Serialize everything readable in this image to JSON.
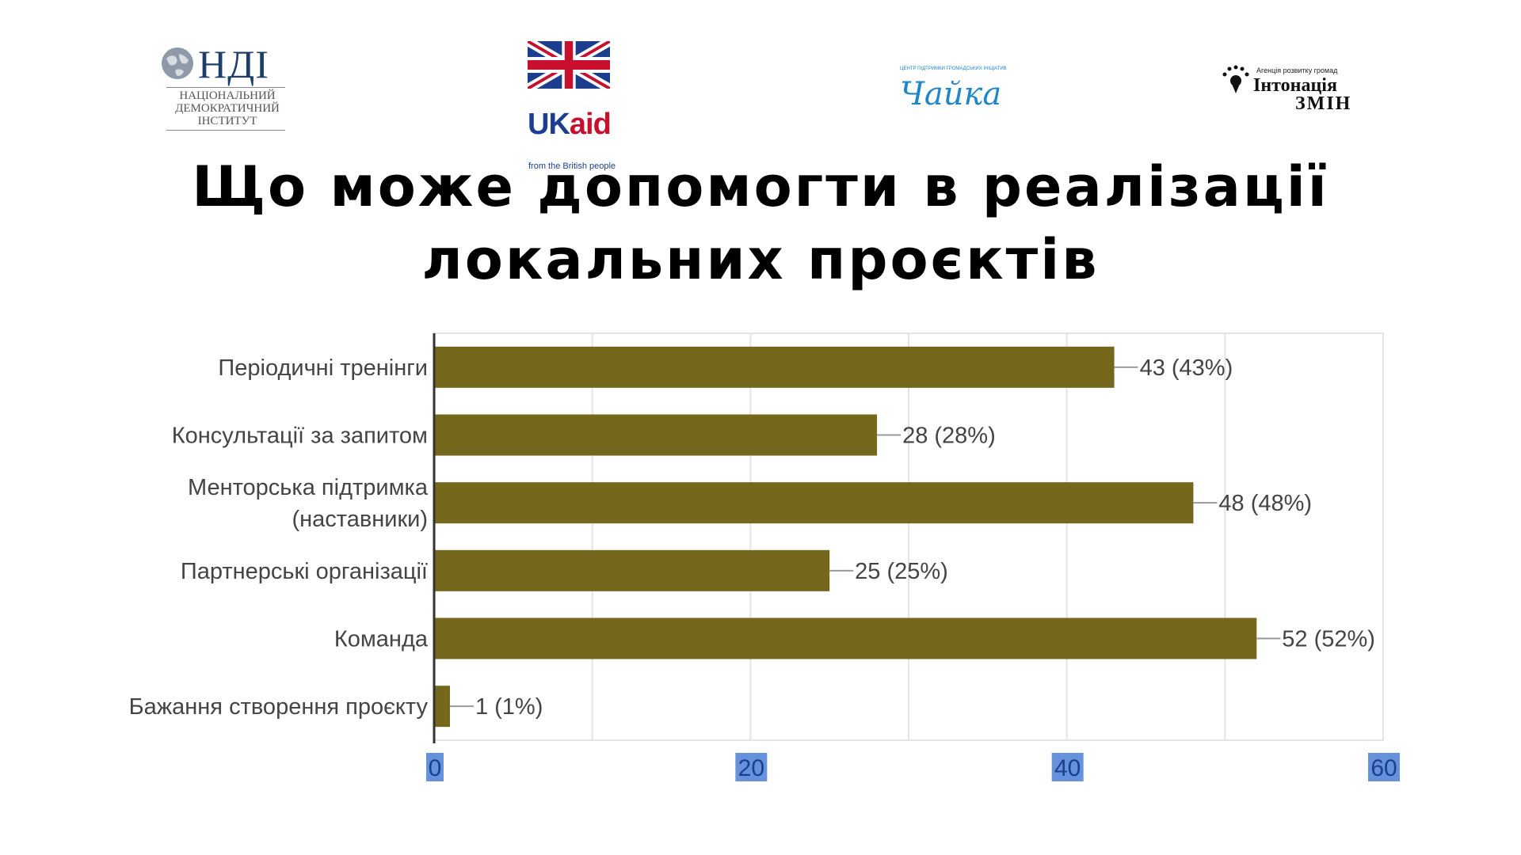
{
  "logos": {
    "ndi": {
      "main": "НДІ",
      "lines": [
        "НАЦІОНАЛЬНИЙ",
        "ДЕМОКРАТИЧНИЙ",
        "ІНСТИТУТ"
      ]
    },
    "ukaid": {
      "uk": "UK",
      "aid": "aid",
      "tagline": "from the British people"
    },
    "chaika": {
      "small": "ЦЕНТР ПІДТРИМКИ ГРОМАДСЬКИХ ІНІЦІАТИВ",
      "script": "Чайка"
    },
    "intonatsiya": {
      "tag": "Агенція розвитку громад",
      "name": "Інтонація",
      "name2": "ЗМІН"
    }
  },
  "title": {
    "line1": "Що може допомогти в реалізації",
    "line2": "локальних проєктів"
  },
  "colors": {
    "bar": "#75671b",
    "grid": "#e4e4e4",
    "label": "#444444",
    "tick_highlight": "#4a7fd4",
    "tick_text": "#1a3f8f"
  },
  "chart_data": {
    "type": "bar",
    "orientation": "horizontal",
    "categories": [
      [
        "Періодичні тренінги"
      ],
      [
        "Консультації за запитом"
      ],
      [
        "Менторська підтримка",
        "(наставники)"
      ],
      [
        "Партнерські організації"
      ],
      [
        "Команда"
      ],
      [
        "Бажання створення проєкту"
      ]
    ],
    "values": [
      43,
      28,
      48,
      25,
      52,
      1
    ],
    "data_labels": [
      "43 (43%)",
      "28 (28%)",
      "48 (48%)",
      "25 (25%)",
      "52 (52%)",
      "1 (1%)"
    ],
    "xlim": [
      0,
      60
    ],
    "xticks": [
      0,
      20,
      40,
      60
    ],
    "minor_grid_step": 10,
    "grid": true,
    "title": "",
    "xlabel": "",
    "ylabel": ""
  }
}
